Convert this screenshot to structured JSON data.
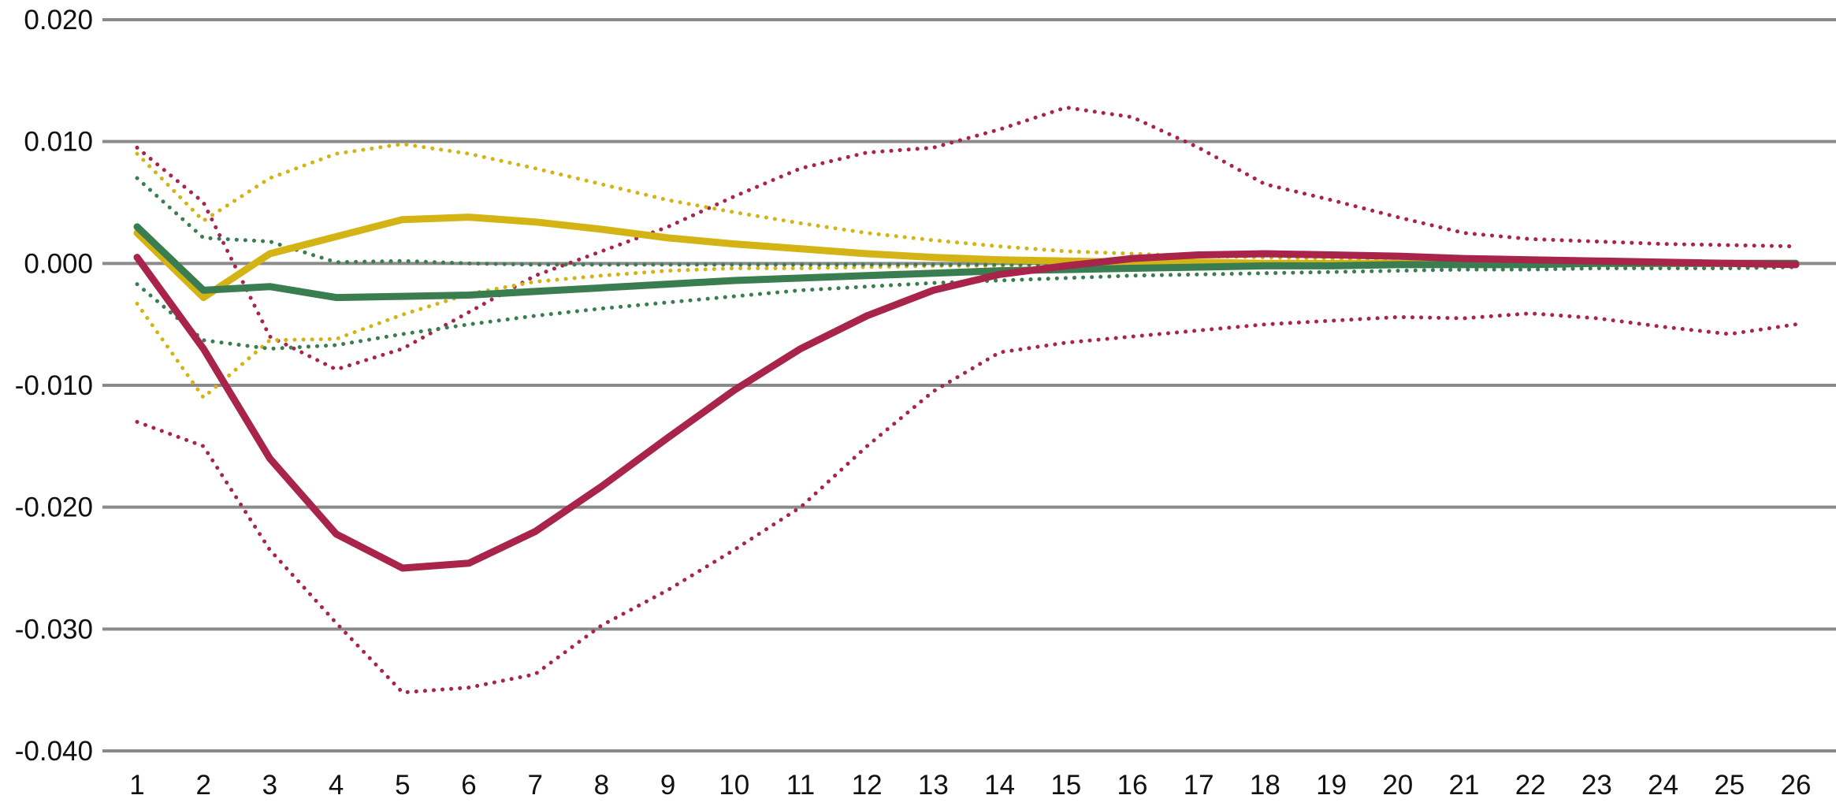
{
  "chart_data": {
    "type": "line",
    "title": "",
    "xlabel": "",
    "ylabel": "",
    "x": [
      1,
      2,
      3,
      4,
      5,
      6,
      7,
      8,
      9,
      10,
      11,
      12,
      13,
      14,
      15,
      16,
      17,
      18,
      19,
      20,
      21,
      22,
      23,
      24,
      25,
      26
    ],
    "ylim": [
      -0.04,
      0.02
    ],
    "yticks": [
      "0.020",
      "0.010",
      "0.000",
      "-0.010",
      "-0.020",
      "-0.030",
      "-0.040"
    ],
    "ytick_values": [
      0.02,
      0.01,
      0.0,
      -0.01,
      -0.02,
      -0.03,
      -0.04
    ],
    "grid": true,
    "legend": "none",
    "series": [
      {
        "style": "dotted",
        "color": "#A8244A",
        "values": [
          -0.013,
          -0.015,
          -0.0235,
          -0.0295,
          -0.0352,
          -0.0348,
          -0.0337,
          -0.0297,
          -0.0268,
          -0.0235,
          -0.02,
          -0.015,
          -0.0105,
          -0.0073,
          -0.0065,
          -0.006,
          -0.0055,
          -0.005,
          -0.0047,
          -0.0044,
          -0.0045,
          -0.0041,
          -0.0045,
          -0.0052,
          -0.0058,
          -0.005
        ]
      },
      {
        "style": "dotted",
        "color": "#A8244A",
        "values": [
          0.0095,
          0.005,
          -0.006,
          -0.0087,
          -0.007,
          -0.004,
          -0.001,
          0.001,
          0.003,
          0.0055,
          0.0078,
          0.0091,
          0.0095,
          0.011,
          0.0128,
          0.012,
          0.0095,
          0.0065,
          0.0052,
          0.0038,
          0.0025,
          0.002,
          0.0018,
          0.0016,
          0.0015,
          0.0014
        ]
      },
      {
        "style": "dotted",
        "color": "#D4B315",
        "values": [
          -0.0033,
          -0.011,
          -0.0063,
          -0.0062,
          -0.0042,
          -0.0025,
          -0.0015,
          -0.001,
          -0.0006,
          -0.0004,
          -0.0004,
          -0.0003,
          -0.0002,
          -0.0002,
          -0.0001,
          -0.0001,
          0.0,
          0.0,
          0.0,
          0.0,
          0.0,
          0.0,
          0.0,
          0.0,
          0.0,
          0.0
        ]
      },
      {
        "style": "dotted",
        "color": "#D4B315",
        "values": [
          0.009,
          0.0035,
          0.007,
          0.009,
          0.0098,
          0.009,
          0.0078,
          0.0065,
          0.0052,
          0.0042,
          0.0033,
          0.0025,
          0.0019,
          0.0014,
          0.001,
          0.0008,
          0.0006,
          0.0005,
          0.0004,
          0.0003,
          0.0003,
          0.0002,
          0.0002,
          0.0001,
          0.0001,
          0.0001
        ]
      },
      {
        "style": "dotted",
        "color": "#3A7D50",
        "values": [
          -0.0017,
          -0.0063,
          -0.007,
          -0.0067,
          -0.0058,
          -0.005,
          -0.0043,
          -0.0037,
          -0.0032,
          -0.0027,
          -0.0022,
          -0.0019,
          -0.0016,
          -0.0014,
          -0.0012,
          -0.001,
          -0.0009,
          -0.0008,
          -0.0007,
          -0.0006,
          -0.0005,
          -0.0005,
          -0.0004,
          -0.0004,
          -0.0004,
          -0.0003
        ]
      },
      {
        "style": "dotted",
        "color": "#3A7D50",
        "values": [
          0.007,
          0.0021,
          0.0018,
          0.0001,
          0.0002,
          0.0,
          -0.0001,
          -0.0001,
          -0.0001,
          -0.0001,
          -0.0001,
          -0.0001,
          -0.0001,
          -0.0001,
          -0.0001,
          -0.0001,
          -0.0001,
          -0.0001,
          -0.0001,
          -0.0001,
          -0.0001,
          -0.0001,
          -0.0001,
          -0.0001,
          -0.0001,
          -0.0001
        ]
      },
      {
        "style": "solid",
        "color": "#D4B315",
        "values": [
          0.0025,
          -0.0028,
          0.0008,
          0.0022,
          0.0036,
          0.0038,
          0.0034,
          0.0028,
          0.0021,
          0.0016,
          0.0012,
          0.0008,
          0.0005,
          0.0003,
          0.0002,
          0.0001,
          0.0001,
          0.0,
          0.0,
          0.0,
          0.0,
          0.0,
          0.0,
          0.0,
          0.0,
          0.0
        ]
      },
      {
        "style": "solid",
        "color": "#3A7D50",
        "values": [
          0.003,
          -0.0022,
          -0.0019,
          -0.0028,
          -0.0027,
          -0.0026,
          -0.0023,
          -0.002,
          -0.0017,
          -0.0014,
          -0.0012,
          -0.001,
          -0.0008,
          -0.0006,
          -0.0005,
          -0.0004,
          -0.0003,
          -0.0002,
          -0.0002,
          -0.0001,
          -0.0001,
          -0.0001,
          0.0,
          0.0,
          0.0,
          0.0
        ]
      },
      {
        "style": "solid",
        "color": "#A8244A",
        "values": [
          0.0005,
          -0.007,
          -0.016,
          -0.0222,
          -0.025,
          -0.0246,
          -0.022,
          -0.0183,
          -0.0143,
          -0.0104,
          -0.007,
          -0.0043,
          -0.0022,
          -0.0009,
          -0.0002,
          0.0004,
          0.0007,
          0.0008,
          0.0007,
          0.0006,
          0.0004,
          0.0003,
          0.0002,
          0.0001,
          0.0,
          -0.0001
        ]
      }
    ]
  },
  "colors": {
    "grid": "#8A8A8A",
    "red": "#A8244A",
    "yellow": "#D4B315",
    "green": "#3A7D50"
  }
}
